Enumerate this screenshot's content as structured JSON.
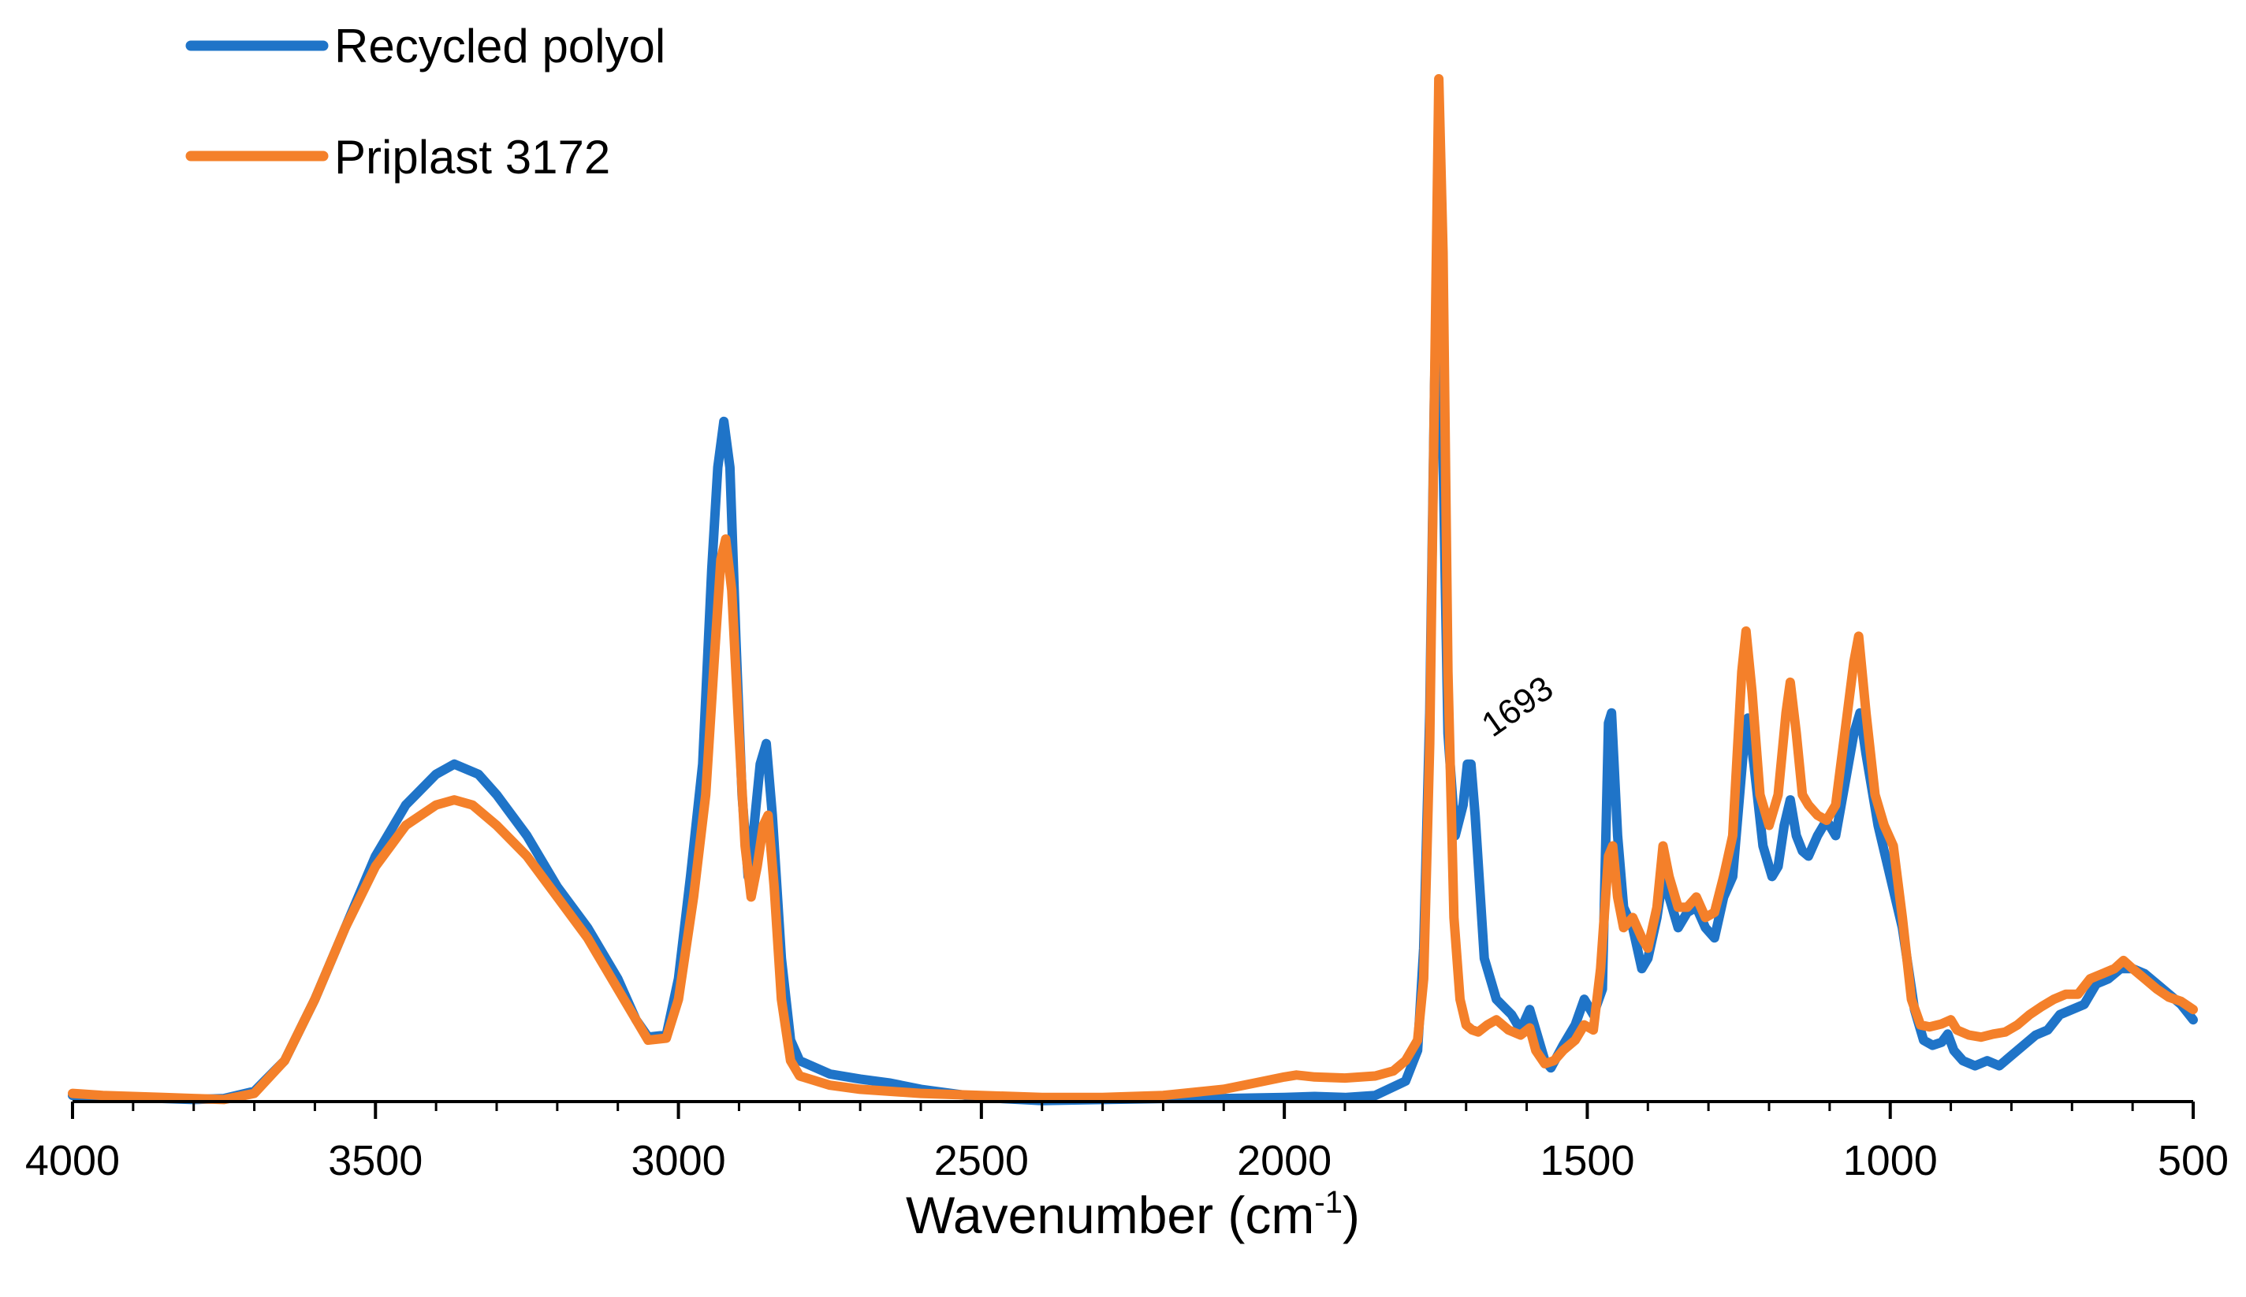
{
  "chart_data": {
    "type": "line",
    "title": "",
    "xlabel": "Wavenumber (cm",
    "xlabel_sup": "-1",
    "xlabel_end": ")",
    "ylabel": "",
    "xlim": [
      4000,
      500
    ],
    "x_reversed": true,
    "ylim": [
      0,
      1
    ],
    "major_ticks": [
      4000,
      3500,
      3000,
      2500,
      2000,
      1500,
      1000,
      500
    ],
    "tick_labels": [
      "4000",
      "3500",
      "3000",
      "2500",
      "2000",
      "1500",
      "1000",
      "500"
    ],
    "minor_tick_step": 100,
    "grid": false,
    "legend_position": "top-left",
    "annotations": [
      {
        "text": "1693",
        "x": 1693,
        "y": 0.34,
        "rotation": -35
      }
    ],
    "series": [
      {
        "name": "Recycled polyol",
        "color": "#1f74c8",
        "points": [
          [
            4000,
            0.006
          ],
          [
            3900,
            0.004
          ],
          [
            3800,
            0.002
          ],
          [
            3750,
            0.003
          ],
          [
            3700,
            0.01
          ],
          [
            3650,
            0.04
          ],
          [
            3600,
            0.1
          ],
          [
            3550,
            0.17
          ],
          [
            3500,
            0.24
          ],
          [
            3450,
            0.29
          ],
          [
            3400,
            0.32
          ],
          [
            3370,
            0.33
          ],
          [
            3330,
            0.32
          ],
          [
            3300,
            0.3
          ],
          [
            3250,
            0.26
          ],
          [
            3200,
            0.21
          ],
          [
            3150,
            0.17
          ],
          [
            3100,
            0.12
          ],
          [
            3070,
            0.08
          ],
          [
            3050,
            0.063
          ],
          [
            3020,
            0.065
          ],
          [
            3000,
            0.12
          ],
          [
            2980,
            0.22
          ],
          [
            2960,
            0.33
          ],
          [
            2945,
            0.52
          ],
          [
            2935,
            0.62
          ],
          [
            2925,
            0.665
          ],
          [
            2915,
            0.62
          ],
          [
            2905,
            0.45
          ],
          [
            2895,
            0.3
          ],
          [
            2885,
            0.22
          ],
          [
            2875,
            0.27
          ],
          [
            2865,
            0.33
          ],
          [
            2855,
            0.35
          ],
          [
            2845,
            0.28
          ],
          [
            2830,
            0.14
          ],
          [
            2815,
            0.06
          ],
          [
            2800,
            0.04
          ],
          [
            2750,
            0.027
          ],
          [
            2700,
            0.022
          ],
          [
            2650,
            0.018
          ],
          [
            2600,
            0.012
          ],
          [
            2500,
            0.004
          ],
          [
            2400,
            0.001
          ],
          [
            2300,
            0.002
          ],
          [
            2200,
            0.003
          ],
          [
            2100,
            0.003
          ],
          [
            2000,
            0.004
          ],
          [
            1950,
            0.005
          ],
          [
            1900,
            0.004
          ],
          [
            1850,
            0.006
          ],
          [
            1800,
            0.02
          ],
          [
            1780,
            0.05
          ],
          [
            1770,
            0.15
          ],
          [
            1760,
            0.38
          ],
          [
            1752,
            0.7
          ],
          [
            1745,
            0.88
          ],
          [
            1738,
            0.63
          ],
          [
            1730,
            0.36
          ],
          [
            1718,
            0.26
          ],
          [
            1705,
            0.29
          ],
          [
            1698,
            0.33
          ],
          [
            1692,
            0.33
          ],
          [
            1685,
            0.28
          ],
          [
            1670,
            0.14
          ],
          [
            1650,
            0.1
          ],
          [
            1625,
            0.085
          ],
          [
            1610,
            0.07
          ],
          [
            1595,
            0.09
          ],
          [
            1585,
            0.07
          ],
          [
            1570,
            0.04
          ],
          [
            1560,
            0.033
          ],
          [
            1540,
            0.055
          ],
          [
            1520,
            0.075
          ],
          [
            1505,
            0.1
          ],
          [
            1490,
            0.085
          ],
          [
            1475,
            0.11
          ],
          [
            1465,
            0.37
          ],
          [
            1460,
            0.38
          ],
          [
            1450,
            0.26
          ],
          [
            1440,
            0.19
          ],
          [
            1425,
            0.17
          ],
          [
            1410,
            0.13
          ],
          [
            1400,
            0.14
          ],
          [
            1385,
            0.18
          ],
          [
            1375,
            0.22
          ],
          [
            1365,
            0.2
          ],
          [
            1350,
            0.17
          ],
          [
            1335,
            0.185
          ],
          [
            1320,
            0.19
          ],
          [
            1305,
            0.17
          ],
          [
            1290,
            0.16
          ],
          [
            1275,
            0.2
          ],
          [
            1260,
            0.22
          ],
          [
            1240,
            0.36
          ],
          [
            1235,
            0.375
          ],
          [
            1225,
            0.33
          ],
          [
            1210,
            0.25
          ],
          [
            1195,
            0.22
          ],
          [
            1185,
            0.23
          ],
          [
            1175,
            0.27
          ],
          [
            1165,
            0.295
          ],
          [
            1155,
            0.26
          ],
          [
            1145,
            0.245
          ],
          [
            1135,
            0.24
          ],
          [
            1120,
            0.26
          ],
          [
            1105,
            0.275
          ],
          [
            1090,
            0.26
          ],
          [
            1075,
            0.31
          ],
          [
            1060,
            0.36
          ],
          [
            1050,
            0.38
          ],
          [
            1040,
            0.34
          ],
          [
            1020,
            0.27
          ],
          [
            1000,
            0.22
          ],
          [
            980,
            0.17
          ],
          [
            960,
            0.09
          ],
          [
            945,
            0.06
          ],
          [
            930,
            0.055
          ],
          [
            915,
            0.058
          ],
          [
            905,
            0.066
          ],
          [
            895,
            0.05
          ],
          [
            880,
            0.04
          ],
          [
            860,
            0.035
          ],
          [
            840,
            0.04
          ],
          [
            820,
            0.035
          ],
          [
            800,
            0.045
          ],
          [
            780,
            0.055
          ],
          [
            760,
            0.065
          ],
          [
            740,
            0.07
          ],
          [
            720,
            0.085
          ],
          [
            700,
            0.09
          ],
          [
            680,
            0.095
          ],
          [
            660,
            0.115
          ],
          [
            640,
            0.12
          ],
          [
            620,
            0.13
          ],
          [
            600,
            0.13
          ],
          [
            580,
            0.125
          ],
          [
            560,
            0.115
          ],
          [
            540,
            0.105
          ],
          [
            520,
            0.095
          ],
          [
            500,
            0.08
          ]
        ]
      },
      {
        "name": "Priplast 3172",
        "color": "#f4802a",
        "points": [
          [
            4000,
            0.008
          ],
          [
            3950,
            0.006
          ],
          [
            3900,
            0.005
          ],
          [
            3850,
            0.004
          ],
          [
            3800,
            0.003
          ],
          [
            3750,
            0.002
          ],
          [
            3700,
            0.008
          ],
          [
            3650,
            0.04
          ],
          [
            3600,
            0.1
          ],
          [
            3550,
            0.17
          ],
          [
            3500,
            0.23
          ],
          [
            3450,
            0.27
          ],
          [
            3400,
            0.29
          ],
          [
            3370,
            0.295
          ],
          [
            3340,
            0.29
          ],
          [
            3300,
            0.27
          ],
          [
            3250,
            0.24
          ],
          [
            3200,
            0.2
          ],
          [
            3150,
            0.16
          ],
          [
            3100,
            0.11
          ],
          [
            3070,
            0.08
          ],
          [
            3050,
            0.06
          ],
          [
            3020,
            0.062
          ],
          [
            3000,
            0.1
          ],
          [
            2975,
            0.2
          ],
          [
            2955,
            0.3
          ],
          [
            2940,
            0.44
          ],
          [
            2930,
            0.53
          ],
          [
            2922,
            0.55
          ],
          [
            2912,
            0.5
          ],
          [
            2900,
            0.36
          ],
          [
            2890,
            0.25
          ],
          [
            2880,
            0.2
          ],
          [
            2870,
            0.23
          ],
          [
            2860,
            0.27
          ],
          [
            2852,
            0.28
          ],
          [
            2842,
            0.21
          ],
          [
            2830,
            0.1
          ],
          [
            2815,
            0.04
          ],
          [
            2800,
            0.025
          ],
          [
            2750,
            0.016
          ],
          [
            2700,
            0.012
          ],
          [
            2650,
            0.01
          ],
          [
            2600,
            0.008
          ],
          [
            2500,
            0.006
          ],
          [
            2400,
            0.004
          ],
          [
            2300,
            0.004
          ],
          [
            2200,
            0.006
          ],
          [
            2100,
            0.012
          ],
          [
            2050,
            0.018
          ],
          [
            2000,
            0.024
          ],
          [
            1980,
            0.026
          ],
          [
            1950,
            0.024
          ],
          [
            1900,
            0.023
          ],
          [
            1850,
            0.025
          ],
          [
            1820,
            0.03
          ],
          [
            1800,
            0.04
          ],
          [
            1780,
            0.06
          ],
          [
            1770,
            0.12
          ],
          [
            1760,
            0.35
          ],
          [
            1752,
            0.7
          ],
          [
            1745,
            1.0
          ],
          [
            1738,
            0.83
          ],
          [
            1730,
            0.42
          ],
          [
            1720,
            0.18
          ],
          [
            1710,
            0.1
          ],
          [
            1700,
            0.075
          ],
          [
            1690,
            0.07
          ],
          [
            1680,
            0.068
          ],
          [
            1665,
            0.075
          ],
          [
            1650,
            0.08
          ],
          [
            1630,
            0.07
          ],
          [
            1610,
            0.065
          ],
          [
            1595,
            0.072
          ],
          [
            1585,
            0.05
          ],
          [
            1570,
            0.037
          ],
          [
            1555,
            0.04
          ],
          [
            1540,
            0.05
          ],
          [
            1520,
            0.06
          ],
          [
            1505,
            0.075
          ],
          [
            1490,
            0.07
          ],
          [
            1478,
            0.13
          ],
          [
            1465,
            0.24
          ],
          [
            1458,
            0.25
          ],
          [
            1450,
            0.2
          ],
          [
            1440,
            0.17
          ],
          [
            1425,
            0.18
          ],
          [
            1410,
            0.16
          ],
          [
            1400,
            0.15
          ],
          [
            1385,
            0.19
          ],
          [
            1375,
            0.25
          ],
          [
            1365,
            0.22
          ],
          [
            1350,
            0.19
          ],
          [
            1335,
            0.19
          ],
          [
            1320,
            0.2
          ],
          [
            1305,
            0.18
          ],
          [
            1290,
            0.185
          ],
          [
            1275,
            0.22
          ],
          [
            1260,
            0.26
          ],
          [
            1245,
            0.42
          ],
          [
            1238,
            0.46
          ],
          [
            1228,
            0.4
          ],
          [
            1215,
            0.3
          ],
          [
            1200,
            0.27
          ],
          [
            1185,
            0.3
          ],
          [
            1172,
            0.38
          ],
          [
            1165,
            0.41
          ],
          [
            1155,
            0.36
          ],
          [
            1145,
            0.3
          ],
          [
            1135,
            0.29
          ],
          [
            1120,
            0.28
          ],
          [
            1105,
            0.275
          ],
          [
            1090,
            0.29
          ],
          [
            1075,
            0.36
          ],
          [
            1060,
            0.43
          ],
          [
            1052,
            0.455
          ],
          [
            1040,
            0.38
          ],
          [
            1025,
            0.3
          ],
          [
            1010,
            0.27
          ],
          [
            995,
            0.25
          ],
          [
            980,
            0.18
          ],
          [
            965,
            0.1
          ],
          [
            950,
            0.075
          ],
          [
            935,
            0.073
          ],
          [
            915,
            0.076
          ],
          [
            900,
            0.08
          ],
          [
            890,
            0.07
          ],
          [
            870,
            0.065
          ],
          [
            850,
            0.063
          ],
          [
            830,
            0.066
          ],
          [
            810,
            0.068
          ],
          [
            790,
            0.075
          ],
          [
            770,
            0.085
          ],
          [
            750,
            0.093
          ],
          [
            730,
            0.1
          ],
          [
            710,
            0.105
          ],
          [
            690,
            0.105
          ],
          [
            670,
            0.12
          ],
          [
            650,
            0.125
          ],
          [
            630,
            0.13
          ],
          [
            615,
            0.138
          ],
          [
            600,
            0.13
          ],
          [
            580,
            0.12
          ],
          [
            560,
            0.11
          ],
          [
            540,
            0.102
          ],
          [
            520,
            0.098
          ],
          [
            500,
            0.09
          ]
        ]
      }
    ]
  }
}
